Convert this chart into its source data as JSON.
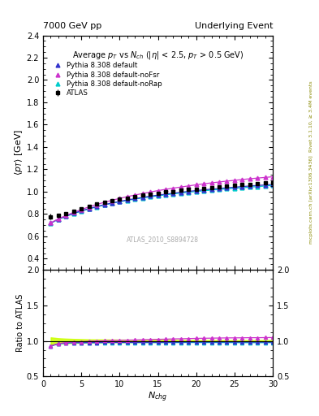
{
  "title_left": "7000 GeV pp",
  "title_right": "Underlying Event",
  "plot_title": "Average $p_T$ vs $N_{ch}$ ($|\\eta|$ < 2.5, $p_T$ > 0.5 GeV)",
  "right_label_top": "Rivet 3.1.10, ≥ 3.4M events",
  "right_label_bot": "mcplots.cern.ch [arXiv:1306.3436]",
  "watermark": "ATLAS_2010_S8894728",
  "ylabel_main": "$\\langle p_T \\rangle$ [GeV]",
  "ylabel_ratio": "Ratio to ATLAS",
  "xlabel": "$N_{chg}$",
  "ylim_main": [
    0.3,
    2.4
  ],
  "ylim_ratio": [
    0.5,
    2.0
  ],
  "xlim": [
    0,
    30
  ],
  "atlas_x": [
    1,
    2,
    3,
    4,
    5,
    6,
    7,
    8,
    9,
    10,
    11,
    12,
    13,
    14,
    15,
    16,
    17,
    18,
    19,
    20,
    21,
    22,
    23,
    24,
    25,
    26,
    27,
    28,
    29,
    30
  ],
  "atlas_y": [
    0.775,
    0.785,
    0.805,
    0.825,
    0.85,
    0.868,
    0.887,
    0.903,
    0.917,
    0.932,
    0.945,
    0.957,
    0.967,
    0.977,
    0.987,
    0.996,
    1.003,
    1.011,
    1.018,
    1.025,
    1.032,
    1.038,
    1.044,
    1.05,
    1.056,
    1.062,
    1.067,
    1.073,
    1.077,
    1.082
  ],
  "atlas_err": [
    0.025,
    0.018,
    0.015,
    0.013,
    0.012,
    0.01,
    0.01,
    0.01,
    0.009,
    0.009,
    0.009,
    0.008,
    0.008,
    0.008,
    0.008,
    0.008,
    0.008,
    0.008,
    0.008,
    0.008,
    0.008,
    0.008,
    0.008,
    0.008,
    0.008,
    0.008,
    0.008,
    0.008,
    0.008,
    0.008
  ],
  "py_def_y": [
    0.72,
    0.755,
    0.782,
    0.807,
    0.829,
    0.849,
    0.867,
    0.884,
    0.899,
    0.913,
    0.926,
    0.938,
    0.949,
    0.96,
    0.969,
    0.978,
    0.987,
    0.995,
    1.003,
    1.01,
    1.017,
    1.023,
    1.029,
    1.035,
    1.04,
    1.046,
    1.051,
    1.056,
    1.06,
    1.065
  ],
  "py_noFsr_y": [
    0.72,
    0.757,
    0.787,
    0.815,
    0.841,
    0.864,
    0.886,
    0.905,
    0.923,
    0.94,
    0.956,
    0.97,
    0.984,
    0.997,
    1.01,
    1.021,
    1.032,
    1.042,
    1.052,
    1.062,
    1.071,
    1.079,
    1.087,
    1.095,
    1.102,
    1.109,
    1.116,
    1.122,
    1.128,
    1.134
  ],
  "py_noRap_y": [
    0.718,
    0.752,
    0.779,
    0.804,
    0.826,
    0.846,
    0.864,
    0.881,
    0.896,
    0.91,
    0.922,
    0.934,
    0.944,
    0.954,
    0.963,
    0.972,
    0.98,
    0.988,
    0.995,
    1.002,
    1.008,
    1.015,
    1.02,
    1.026,
    1.031,
    1.036,
    1.041,
    1.046,
    1.051,
    1.056
  ],
  "atlas_band_lo": [
    0.95,
    0.962,
    0.968,
    0.972,
    0.975,
    0.978,
    0.979,
    0.98,
    0.981,
    0.982,
    0.982,
    0.983,
    0.984,
    0.984,
    0.985,
    0.985,
    0.986,
    0.986,
    0.987,
    0.987,
    0.987,
    0.987,
    0.988,
    0.988,
    0.988,
    0.988,
    0.988,
    0.988,
    0.988,
    0.988
  ],
  "atlas_band_hi": [
    1.05,
    1.038,
    1.032,
    1.028,
    1.025,
    1.022,
    1.021,
    1.02,
    1.019,
    1.018,
    1.018,
    1.017,
    1.016,
    1.016,
    1.015,
    1.015,
    1.014,
    1.014,
    1.013,
    1.013,
    1.013,
    1.013,
    1.012,
    1.012,
    1.012,
    1.012,
    1.012,
    1.012,
    1.012,
    1.012
  ],
  "color_atlas": "#000000",
  "color_default": "#3333cc",
  "color_noFsr": "#cc33cc",
  "color_noRap": "#00cccc",
  "color_band": "#ccff00"
}
